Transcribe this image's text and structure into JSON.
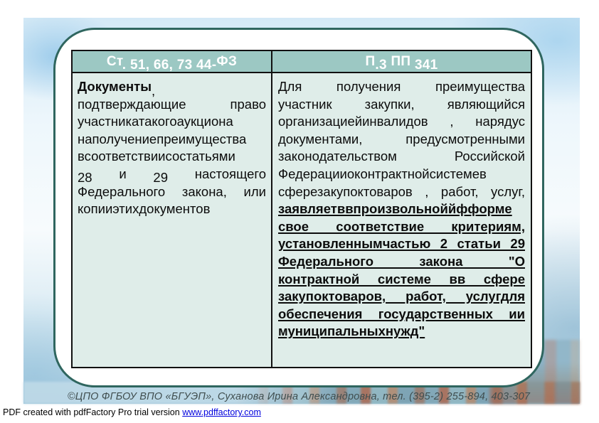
{
  "colors": {
    "header_bg": "#9cc8c3",
    "cell_bg": "#dfede9",
    "card_border": "#2f665f",
    "table_border": "#111111",
    "link_blue": "#0000dd"
  },
  "table": {
    "header_left": {
      "part1": "Ст",
      "part2": ". 51, 66, 73 44-",
      "part3": "ФЗ"
    },
    "header_right": {
      "part1": "П",
      "part2": ".3 ",
      "part3": "ПП ",
      "part4": "341"
    },
    "left_cell": {
      "title_bold": "Документы",
      "title_comma": ",",
      "line2": "подтверждающие право",
      "line3": "участникатакогоаукциона",
      "line4": "наполучениепреимущества",
      "line5": "всоответствиисостатьями",
      "line6_num1": "28",
      "line6_word1": "и",
      "line6_num2": "29",
      "line6_word2": "настоящего",
      "line7": "Федерального закона, или",
      "line8": "копииэтихдокументов"
    },
    "right_cell": {
      "regular_lines": [
        "Для получения преимущества",
        "участник закупки, являющийся",
        "организациейинвалидов , нарядус",
        "документами, предусмотренными",
        "законодательством Российской",
        "Федерацииоконтрактнойсистемев",
        "сферезакупоктоваров , работ, услуг,"
      ],
      "bold_lines": [
        "заявляетввпроизвольноййфформе",
        "свое соответствие критериям,",
        "установленнымчастью 2 статьи 29",
        "Федерального закона \"О",
        "контрактной системе вв сфере",
        "закупоктоваров, работ, услугдля",
        "обеспечения государственных ии",
        "муниципальныхнужд\""
      ]
    }
  },
  "footer": {
    "credit": "©ЦПО ФГБОУ ВПО «БГУЭП», Суханова Ирина Александровна, тел. (395-2) 255-894, 403-307"
  },
  "pdf_notice": {
    "prefix": "PDF created with pdfFactory Pro trial version ",
    "link": "www.pdffactory.com"
  }
}
